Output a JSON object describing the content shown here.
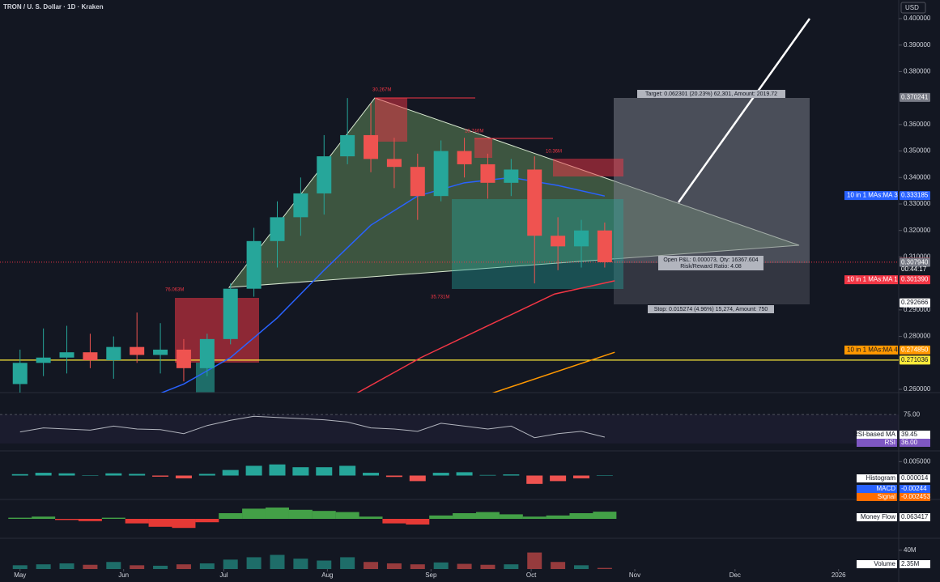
{
  "header": {
    "symbol": "TRON / U. S. Dollar · 1D · Kraken",
    "currency": "USD"
  },
  "chart_data": {
    "type": "candlestick",
    "x": [
      0,
      7,
      14,
      21,
      28,
      35,
      42,
      49,
      56,
      63,
      70,
      77,
      84,
      91,
      98,
      105,
      112,
      119,
      126,
      133,
      140,
      147,
      154,
      161,
      168,
      175
    ],
    "open": [
      0.262,
      0.27,
      0.272,
      0.274,
      0.271,
      0.276,
      0.273,
      0.275,
      0.268,
      0.279,
      0.298,
      0.316,
      0.325,
      0.334,
      0.348,
      0.356,
      0.347,
      0.344,
      0.333,
      0.35,
      0.345,
      0.338,
      0.343,
      0.318,
      0.314,
      0.32
    ],
    "high": [
      0.275,
      0.283,
      0.284,
      0.281,
      0.28,
      0.289,
      0.285,
      0.279,
      0.281,
      0.3,
      0.321,
      0.331,
      0.34,
      0.356,
      0.37,
      0.368,
      0.355,
      0.349,
      0.354,
      0.355,
      0.349,
      0.347,
      0.348,
      0.325,
      0.324,
      0.323
    ],
    "low": [
      0.258,
      0.265,
      0.266,
      0.268,
      0.264,
      0.27,
      0.266,
      0.263,
      0.265,
      0.277,
      0.295,
      0.306,
      0.318,
      0.326,
      0.345,
      0.342,
      0.336,
      0.324,
      0.331,
      0.34,
      0.332,
      0.333,
      0.3,
      0.305,
      0.306,
      0.306
    ],
    "close": [
      0.27,
      0.272,
      0.274,
      0.271,
      0.276,
      0.273,
      0.275,
      0.268,
      0.279,
      0.298,
      0.316,
      0.325,
      0.334,
      0.348,
      0.356,
      0.347,
      0.344,
      0.333,
      0.35,
      0.345,
      0.338,
      0.343,
      0.318,
      0.314,
      0.32,
      0.308
    ],
    "up_color": "#26a69a",
    "down_color": "#ef5350",
    "xlim": [
      -6,
      263
    ],
    "ylim": [
      0.26,
      0.4
    ],
    "xticks": [
      {
        "value": 0,
        "label": "May"
      },
      {
        "value": 31,
        "label": "Jun"
      },
      {
        "value": 61,
        "label": "Jul"
      },
      {
        "value": 92,
        "label": "Aug"
      },
      {
        "value": 123,
        "label": "Sep"
      },
      {
        "value": 153,
        "label": "Oct"
      },
      {
        "value": 184,
        "label": "Nov"
      },
      {
        "value": 214,
        "label": "Dec"
      },
      {
        "value": 245,
        "label": "2026"
      }
    ],
    "yticks": [
      {
        "value": 0.4,
        "label": "0.400000"
      },
      {
        "value": 0.39,
        "label": "0.390000"
      },
      {
        "value": 0.38,
        "label": "0.380000"
      },
      {
        "value": 0.36,
        "label": "0.360000"
      },
      {
        "value": 0.35,
        "label": "0.350000"
      },
      {
        "value": 0.34,
        "label": "0.340000"
      },
      {
        "value": 0.33,
        "label": "0.330000"
      },
      {
        "value": 0.32,
        "label": "0.320000"
      },
      {
        "value": 0.31,
        "label": "0.310000"
      },
      {
        "value": 0.29,
        "label": "0.290000"
      },
      {
        "value": 0.28,
        "label": "0.280000"
      },
      {
        "value": 0.26,
        "label": "0.260000"
      }
    ],
    "moving_averages": [
      {
        "name": "10 in 1 MAs:MA 3",
        "color": "#2962ff",
        "x": [
          35,
          49,
          63,
          77,
          91,
          105,
          119,
          133,
          147,
          161,
          175
        ],
        "values": [
          0.255,
          0.262,
          0.272,
          0.287,
          0.305,
          0.322,
          0.333,
          0.338,
          0.34,
          0.337,
          0.333
        ],
        "last": {
          "value": 0.333185,
          "label": "0.333185"
        }
      },
      {
        "name": "10 in 1 MAs:MA 1",
        "color": "#f23645",
        "x": [
          100,
          120,
          140,
          160,
          178
        ],
        "values": [
          0.258,
          0.272,
          0.284,
          0.296,
          0.301
        ],
        "last": {
          "value": 0.30139,
          "label": "0.301390"
        }
      },
      {
        "name": "10 in 1 MAs:MA 4",
        "color": "#ff9800",
        "x": [
          140,
          178
        ],
        "values": [
          0.258,
          0.274
        ],
        "last": {
          "value": 0.27485,
          "label": "0.274850"
        }
      }
    ],
    "price_tags": [
      {
        "value": 0.370241,
        "label": "0.370241",
        "color": "#787b86"
      },
      {
        "value": 0.308013,
        "label": "0.308013",
        "color": "#f23645"
      },
      {
        "value": 0.30794,
        "label": "0.307940",
        "color": "#787b86"
      },
      {
        "value": 0.292666,
        "label": "0.292666",
        "color": "#ffffff"
      },
      {
        "value": 0.271036,
        "label": "0.271036",
        "color": "#ffeb3b"
      }
    ],
    "countdown": "00:44:17",
    "annotations": [
      "30.267M",
      "76.063M",
      "35.731M",
      "18.746M",
      "10.36M"
    ],
    "position": {
      "target": "Target: 0.062301 (20.23%) 62,301, Amount: 2019.72",
      "pnl": "Open P&L: 0.000073, Qty: 16367.604",
      "ratio": "Risk/Reward Ratio: 4.08",
      "stop": "Stop: 0.015274 (4.96%) 15,274, Amount: 750"
    },
    "indicators": {
      "rsi": {
        "ylim": [
          15,
          85
        ],
        "level": {
          "value": 75,
          "label": "75.00"
        },
        "ma_name": "RSI-based MA",
        "ma_value": 39.45,
        "name": "RSI",
        "value": {
          "value": 36,
          "label": "36.00"
        },
        "values": [
          45,
          52,
          50,
          48,
          55,
          50,
          49,
          42,
          56,
          65,
          72,
          70,
          68,
          66,
          62,
          52,
          50,
          46,
          60,
          55,
          50,
          55,
          35,
          42,
          46,
          36
        ]
      },
      "macd": {
        "ylim": [
          -0.008,
          0.008
        ],
        "level": {
          "value": 0.005,
          "label": "0.005000"
        },
        "hist_name": "Histogram",
        "hist_value": 1.4e-05,
        "macd_name": "MACD",
        "macd_value": -0.00244,
        "signal_name": "Signal",
        "signal_value": -0.002453,
        "values": [
          0.0005,
          0.001,
          0.0008,
          0,
          0.0008,
          0.0006,
          -0.0004,
          -0.001,
          0.0006,
          0.002,
          0.0035,
          0.004,
          0.003,
          0.003,
          0.0035,
          0.001,
          -0.0005,
          -0.002,
          0.001,
          0.0012,
          0.0002,
          0.0004,
          -0.003,
          -0.002,
          -0.001,
          1.4e-05
        ]
      },
      "money_flow": {
        "ylim": [
          -0.15,
          0.15
        ],
        "name": "Money Flow",
        "value": 0.063417,
        "values": [
          0.01,
          0.02,
          -0.01,
          -0.02,
          0.01,
          -0.04,
          -0.07,
          -0.08,
          -0.03,
          0.05,
          0.09,
          0.1,
          0.08,
          0.07,
          0.06,
          0.02,
          -0.04,
          -0.05,
          0.03,
          0.05,
          0.06,
          0.04,
          0.02,
          0.03,
          0.05,
          0.063417
        ]
      },
      "volume": {
        "ylim": [
          0,
          60
        ],
        "level": {
          "value": 40,
          "label": "40M"
        },
        "name": "Volume",
        "value": {
          "value": 2.35,
          "label": "2.35M"
        },
        "values": [
          8,
          10,
          12,
          9,
          15,
          8,
          7,
          10,
          12,
          20,
          25,
          30,
          22,
          18,
          25,
          15,
          12,
          10,
          14,
          11,
          9,
          10,
          35,
          15,
          8,
          2.35
        ]
      }
    }
  }
}
